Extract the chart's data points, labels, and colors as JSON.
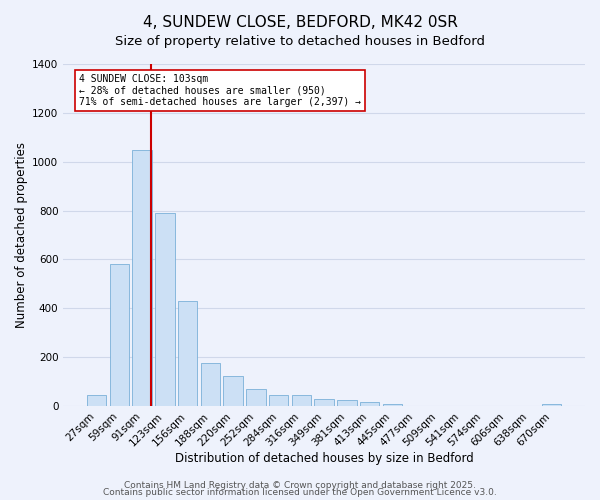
{
  "title": "4, SUNDEW CLOSE, BEDFORD, MK42 0SR",
  "subtitle": "Size of property relative to detached houses in Bedford",
  "xlabel": "Distribution of detached houses by size in Bedford",
  "ylabel": "Number of detached properties",
  "bar_color": "#cce0f5",
  "bar_edge_color": "#7ab0d8",
  "bg_color": "#eef2fc",
  "grid_color": "#d0d8ea",
  "categories": [
    "27sqm",
    "59sqm",
    "91sqm",
    "123sqm",
    "156sqm",
    "188sqm",
    "220sqm",
    "252sqm",
    "284sqm",
    "316sqm",
    "349sqm",
    "381sqm",
    "413sqm",
    "445sqm",
    "477sqm",
    "509sqm",
    "541sqm",
    "574sqm",
    "606sqm",
    "638sqm",
    "670sqm"
  ],
  "values": [
    47,
    583,
    1047,
    790,
    430,
    178,
    125,
    68,
    45,
    47,
    28,
    25,
    15,
    8,
    0,
    0,
    0,
    0,
    0,
    0,
    8
  ],
  "ylim": [
    0,
    1400
  ],
  "yticks": [
    0,
    200,
    400,
    600,
    800,
    1000,
    1200,
    1400
  ],
  "vline_x_index": 2.37,
  "vline_color": "#cc0000",
  "annotation_title": "4 SUNDEW CLOSE: 103sqm",
  "annotation_line1": "← 28% of detached houses are smaller (950)",
  "annotation_line2": "71% of semi-detached houses are larger (2,397) →",
  "annotation_box_color": "#ffffff",
  "annotation_box_edge": "#cc0000",
  "footer1": "Contains HM Land Registry data © Crown copyright and database right 2025.",
  "footer2": "Contains public sector information licensed under the Open Government Licence v3.0.",
  "title_fontsize": 11,
  "subtitle_fontsize": 9.5,
  "label_fontsize": 8.5,
  "tick_fontsize": 7.5,
  "footer_fontsize": 6.5
}
